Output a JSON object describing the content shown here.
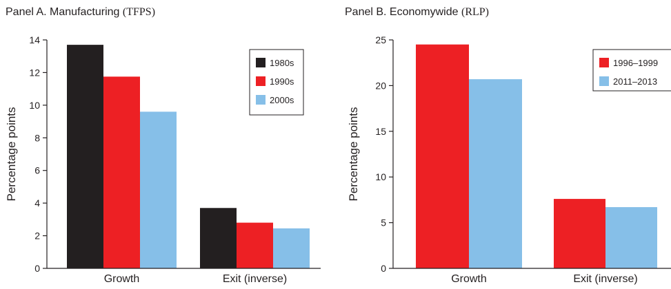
{
  "colors": {
    "dark": "#231f20",
    "red": "#ed2024",
    "blue": "#86bfe8",
    "axis": "#231f20"
  },
  "chart_data": [
    {
      "type": "bar",
      "title": "Panel A. Manufacturing",
      "title_paren": "(TFPS)",
      "xlabel": "",
      "ylabel": "Percentage points",
      "categories": [
        "Growth",
        "Exit (inverse)"
      ],
      "ylim": [
        0,
        14
      ],
      "yticks": [
        0,
        2,
        4,
        6,
        8,
        10,
        12,
        14
      ],
      "legend_position": "top-right",
      "series": [
        {
          "name": "1980s",
          "color": "#231f20",
          "values": [
            13.7,
            3.7
          ]
        },
        {
          "name": "1990s",
          "color": "#ed2024",
          "values": [
            11.75,
            2.8
          ]
        },
        {
          "name": "2000s",
          "color": "#86bfe8",
          "values": [
            9.6,
            2.45
          ]
        }
      ]
    },
    {
      "type": "bar",
      "title": "Panel B. Economywide",
      "title_paren": "(RLP)",
      "xlabel": "",
      "ylabel": "Percentage points",
      "categories": [
        "Growth",
        "Exit (inverse)"
      ],
      "ylim": [
        0,
        25
      ],
      "yticks": [
        0,
        5,
        10,
        15,
        20,
        25
      ],
      "legend_position": "top-right",
      "series": [
        {
          "name": "1996–1999",
          "color": "#ed2024",
          "values": [
            24.5,
            7.6
          ]
        },
        {
          "name": "2011–2013",
          "color": "#86bfe8",
          "values": [
            20.7,
            6.7
          ]
        }
      ]
    }
  ]
}
